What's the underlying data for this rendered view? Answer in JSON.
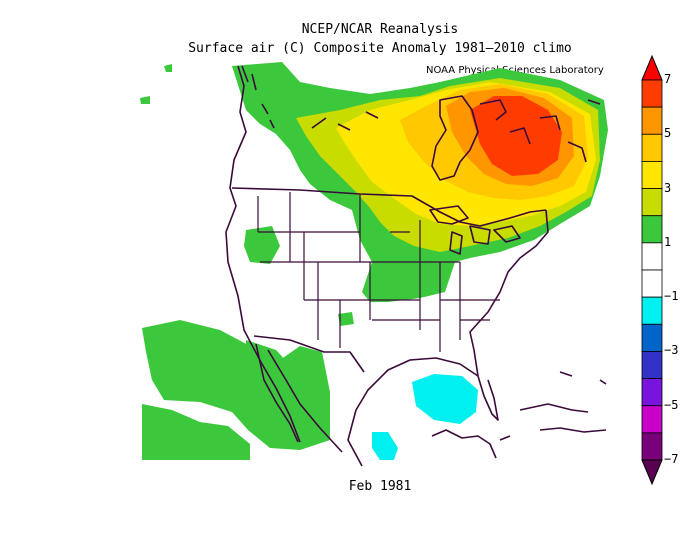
{
  "header": {
    "title_line1": "NCEP/NCAR Reanalysis",
    "title_line2": "Surface air (C) Composite Anomaly 1981–2010 climo",
    "credit": "NOAA Physical Sciences Laboratory"
  },
  "footer": {
    "period": "Feb 1981"
  },
  "colorbar": {
    "ticks": [
      "7",
      "5",
      "3",
      "1",
      "−1",
      "−3",
      "−5",
      "−7"
    ],
    "bins": [
      {
        "from": 6,
        "to": 7,
        "color": "#ff3c00"
      },
      {
        "from": 5,
        "to": 6,
        "color": "#ff9600"
      },
      {
        "from": 4,
        "to": 5,
        "color": "#ffc800"
      },
      {
        "from": 3,
        "to": 4,
        "color": "#ffe600"
      },
      {
        "from": 2,
        "to": 3,
        "color": "#c8dc00"
      },
      {
        "from": 1,
        "to": 2,
        "color": "#3cc83c"
      },
      {
        "from": 0,
        "to": 1,
        "color": "#ffffff"
      },
      {
        "from": -1,
        "to": 0,
        "color": "#ffffff"
      },
      {
        "from": -2,
        "to": -1,
        "color": "#00f0f0"
      },
      {
        "from": -3,
        "to": -2,
        "color": "#0064c8"
      },
      {
        "from": -4,
        "to": -3,
        "color": "#3232c8"
      },
      {
        "from": -5,
        "to": -4,
        "color": "#7814dc"
      },
      {
        "from": -6,
        "to": -5,
        "color": "#c800c8"
      },
      {
        "from": -7,
        "to": -6,
        "color": "#780078"
      }
    ],
    "over_color": "#ff0000",
    "under_color": "#5a0050"
  }
}
